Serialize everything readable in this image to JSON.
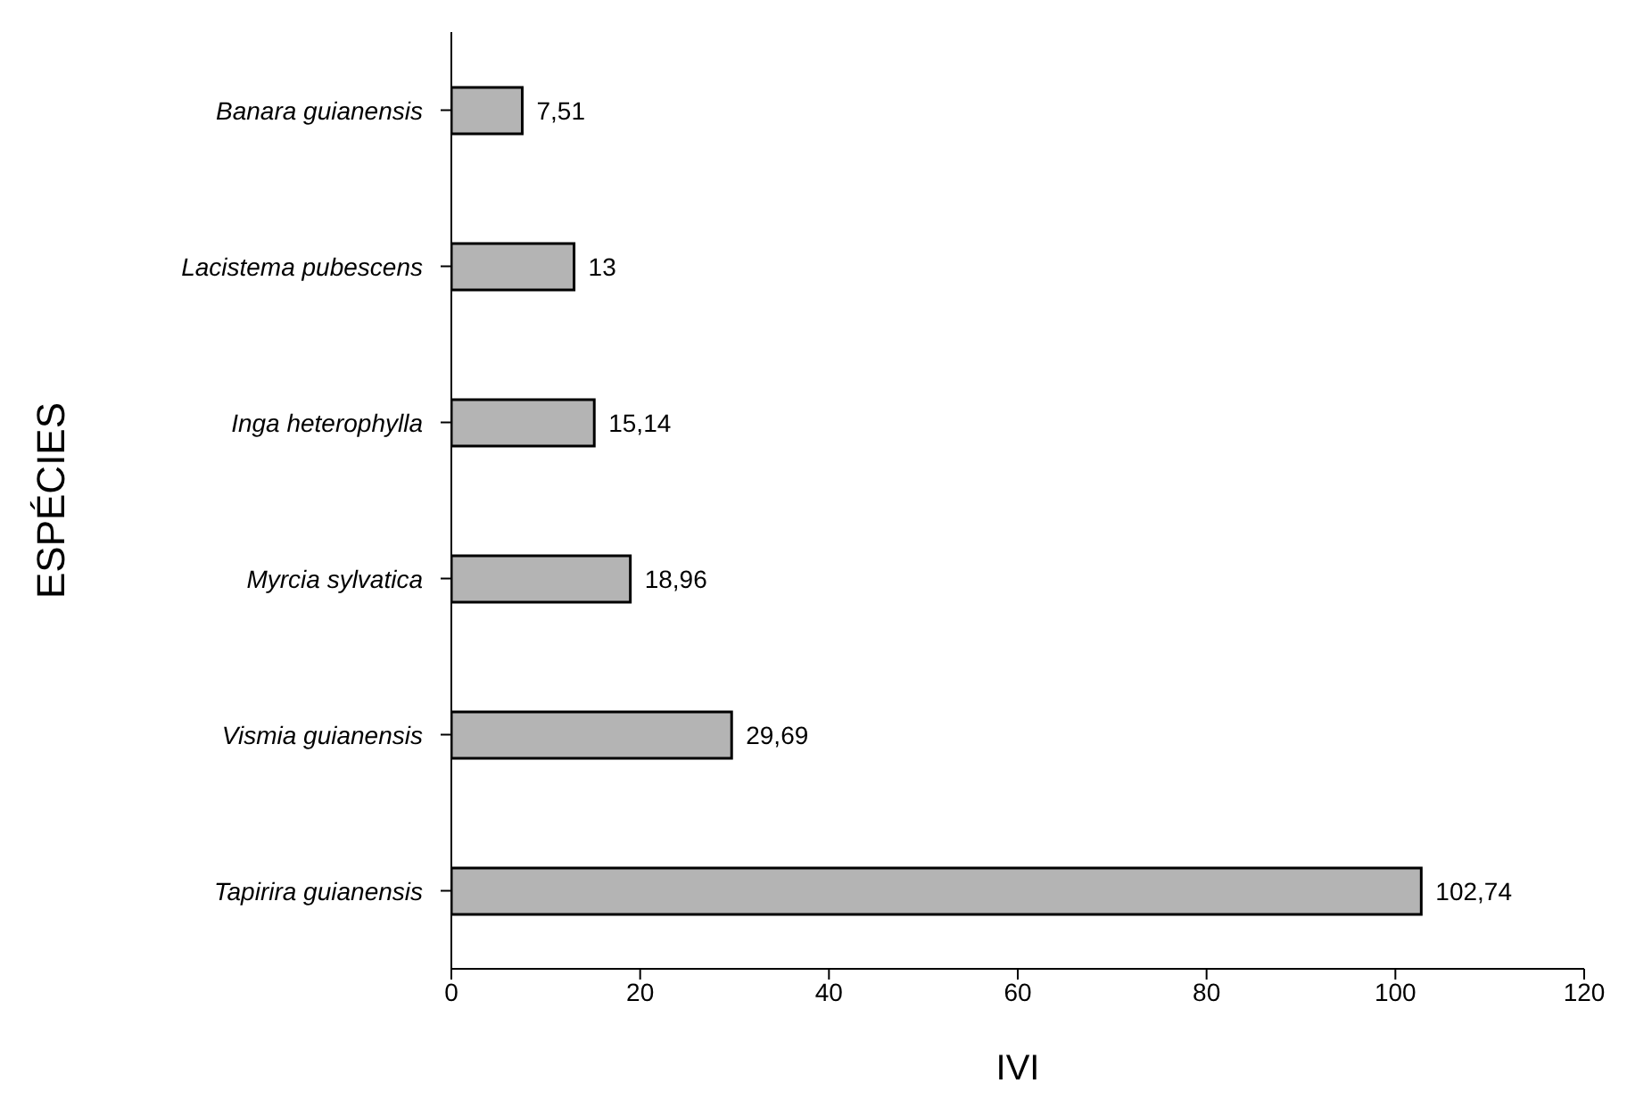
{
  "chart_data": {
    "type": "bar",
    "orientation": "horizontal",
    "xlabel": "IVI",
    "ylabel": "ESPÉCIES",
    "categories": [
      "Banara guianensis",
      "Lacistema pubescens",
      "Inga heterophylla",
      "Myrcia sylvatica",
      "Vismia guianensis",
      "Tapirira guianensis"
    ],
    "values": [
      7.51,
      13,
      15.14,
      18.96,
      29.69,
      102.74
    ],
    "value_labels": [
      "7,51",
      "13",
      "15,14",
      "18,96",
      "29,69",
      "102,74"
    ],
    "color": "#b4b4b4",
    "xlim": [
      0,
      120
    ],
    "xticks": [
      0,
      20,
      40,
      60,
      80,
      100,
      120
    ],
    "grid": false
  }
}
